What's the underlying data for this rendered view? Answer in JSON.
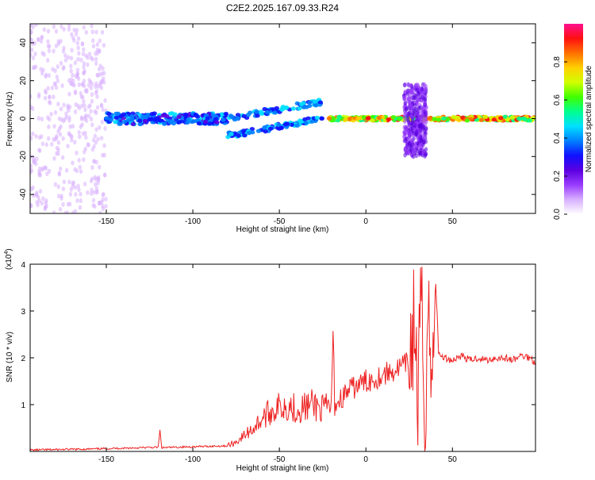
{
  "title": "C2E2.2025.167.09.33.R24",
  "chart_data": [
    {
      "type": "heatmap",
      "xlabel": "Height of straight line (km)",
      "ylabel": "Frequency (Hz)",
      "xlim": [
        -194,
        98
      ],
      "ylim": [
        -50,
        50
      ],
      "xticks": [
        -150,
        -100,
        -50,
        0,
        50
      ],
      "yticks": [
        -40,
        -20,
        0,
        20,
        40
      ],
      "colorbar": {
        "label": "Normalized spectral amplitude",
        "range": [
          0,
          1
        ],
        "ticks": [
          "0.0",
          "0.2",
          "0.4",
          "0.6",
          "0.8"
        ],
        "colormap": [
          "#ffffff",
          "#d8b0ff",
          "#9a3cff",
          "#5a00e0",
          "#1010ff",
          "#0080ff",
          "#00e0ff",
          "#00ff90",
          "#40ff00",
          "#d0ff00",
          "#ffd000",
          "#ff7000",
          "#ff1010",
          "#ff1090"
        ]
      },
      "features": [
        {
          "x": [
            -194,
            -150
          ],
          "y": [
            -50,
            50
          ],
          "amplitude": 0.1
        },
        {
          "x": [
            -150,
            -80
          ],
          "y": [
            -3,
            3
          ],
          "amplitude": 0.45
        },
        {
          "x": [
            -80,
            -25
          ],
          "y": [
            -10,
            10
          ],
          "amplitude": 0.5
        },
        {
          "x": [
            -22,
            35
          ],
          "y": [
            -1,
            1
          ],
          "amplitude": 0.95
        },
        {
          "x": [
            22,
            35
          ],
          "y": [
            -20,
            18
          ],
          "amplitude": 0.25
        },
        {
          "x": [
            37,
            98
          ],
          "y": [
            -1,
            1
          ],
          "amplitude": 0.95
        }
      ]
    },
    {
      "type": "line",
      "xlabel": "Height of straight line (km)",
      "ylabel": "SNR (10 * v/v)",
      "multiplier": "(x10",
      "multiplier_exp": "4",
      "xlim": [
        -194,
        98
      ],
      "ylim": [
        0,
        4
      ],
      "xticks": [
        -150,
        -100,
        -50,
        0,
        50
      ],
      "yticks": [
        1,
        2,
        3,
        4
      ],
      "color": "#ee2222",
      "series": [
        {
          "x": [
            -194,
            -180,
            -160,
            -140,
            -120,
            -119,
            -118,
            -100,
            -80,
            -75,
            -70,
            -65,
            -60,
            -55,
            -50,
            -45,
            -40,
            -35,
            -30,
            -25,
            -20,
            -19,
            -18,
            -15,
            -10,
            -5,
            0,
            5,
            10,
            15,
            20,
            25,
            28,
            30,
            32,
            34,
            36,
            38,
            40,
            42,
            45,
            50,
            55,
            60,
            65,
            70,
            75,
            80,
            85,
            90,
            95,
            98
          ],
          "y": [
            0.03,
            0.04,
            0.05,
            0.07,
            0.09,
            0.45,
            0.08,
            0.1,
            0.12,
            0.2,
            0.35,
            0.5,
            0.7,
            0.85,
            0.95,
            1.0,
            0.9,
            0.95,
            1.0,
            0.9,
            0.95,
            2.55,
            1.0,
            1.1,
            1.3,
            1.4,
            1.5,
            1.55,
            1.65,
            1.7,
            1.8,
            1.9,
            2.8,
            1.0,
            3.3,
            0.5,
            3.4,
            1.0,
            4.0,
            2.1,
            2.0,
            1.95,
            2.05,
            1.95,
            2.0,
            1.95,
            2.0,
            2.0,
            1.95,
            2.05,
            2.0,
            1.9
          ]
        }
      ]
    }
  ]
}
